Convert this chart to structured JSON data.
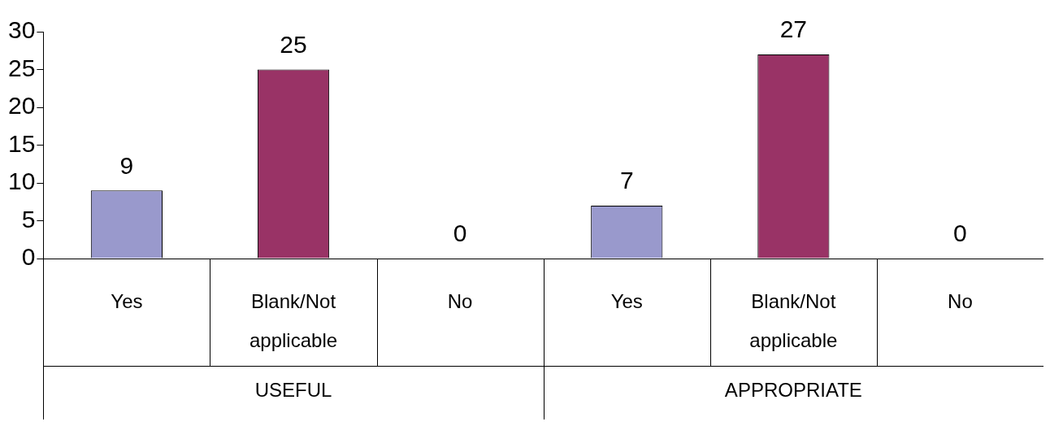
{
  "chart_data": {
    "type": "bar",
    "categories": [
      "Yes",
      "Blank/Not applicable",
      "No",
      "Yes",
      "Blank/Not applicable",
      "No"
    ],
    "values": [
      9,
      25,
      0,
      7,
      27,
      0
    ],
    "colors": [
      "#9999cc",
      "#993366",
      "#993366",
      "#9999cc",
      "#993366",
      "#993366"
    ],
    "ylim": [
      0,
      30
    ],
    "yticks": [
      0,
      5,
      10,
      15,
      20,
      25,
      30
    ],
    "grid": false,
    "legend": false,
    "data_labels": true,
    "annotations": [
      "USEFUL",
      "APPROPRIATE"
    ]
  }
}
